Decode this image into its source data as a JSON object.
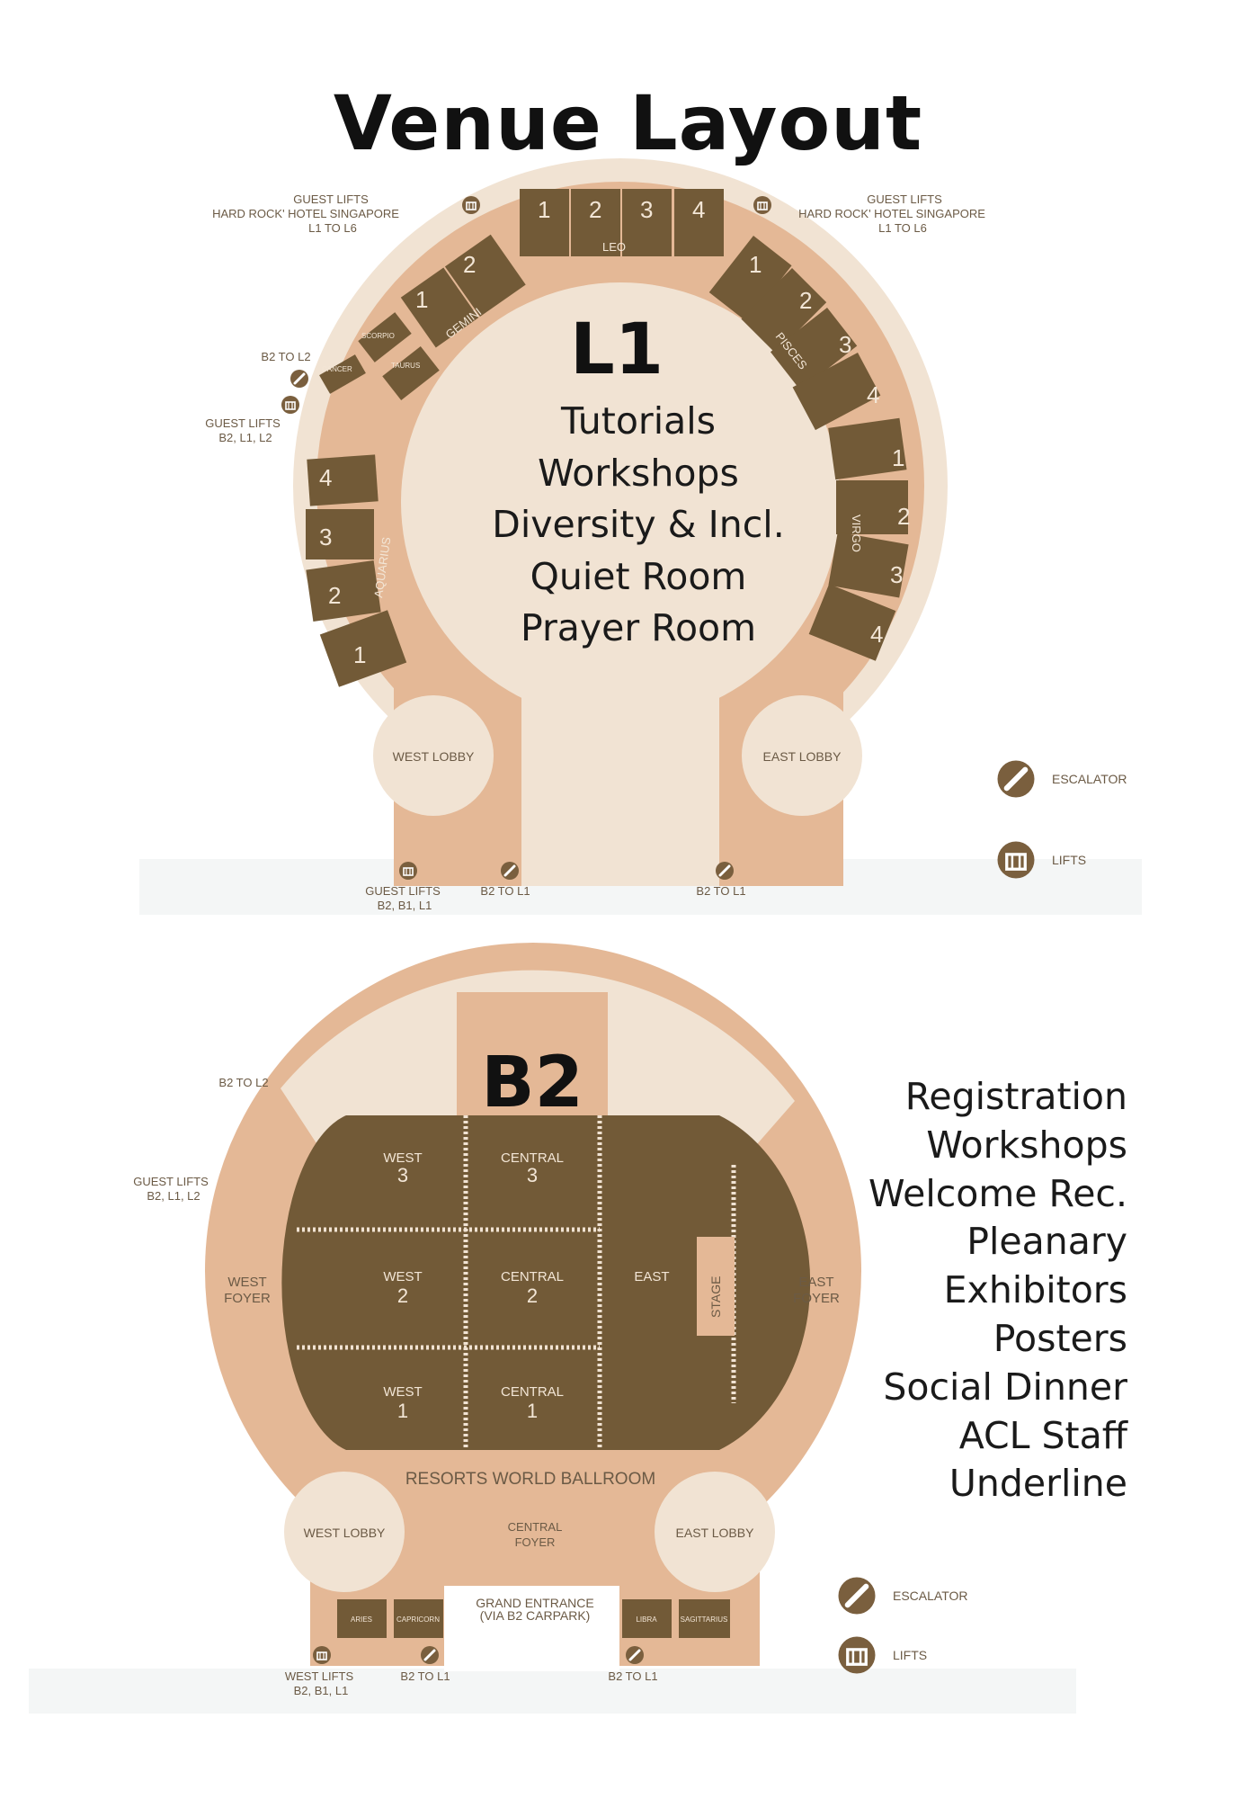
{
  "title": "Venue Layout",
  "l1": {
    "level": "L1",
    "uses": [
      "Tutorials",
      "Workshops",
      "Diversity & Incl.",
      "Quiet Room",
      "Prayer Room"
    ],
    "leo": {
      "name": "LEO",
      "rooms": [
        "1",
        "2",
        "3",
        "4"
      ]
    },
    "gemini": {
      "name": "GEMINI",
      "rooms": [
        "1",
        "2"
      ]
    },
    "pisces": {
      "name": "PISCES",
      "rooms": [
        "1",
        "2",
        "3",
        "4"
      ]
    },
    "virgo": {
      "name": "VIRGO",
      "rooms": [
        "1",
        "2",
        "3",
        "4"
      ]
    },
    "aquarius": {
      "name": "AQUARIUS",
      "rooms": [
        "1",
        "2",
        "3",
        "4"
      ]
    },
    "scorpio": "SCORPIO",
    "taurus": "TAURUS",
    "cancer": "CANCER",
    "west_lobby": "WEST LOBBY",
    "east_lobby": "EAST LOBBY",
    "guest_lifts_hr_left": [
      "GUEST LIFTS",
      "HARD ROCK' HOTEL SINGAPORE",
      "L1 TO L6"
    ],
    "guest_lifts_hr_right": [
      "GUEST LIFTS",
      "HARD ROCK' HOTEL SINGAPORE",
      "L1 TO L6"
    ],
    "b2_to_l2": "B2 TO L2",
    "guest_lifts_b2_l2": [
      "GUEST LIFTS",
      "B2, L1, L2"
    ],
    "guest_lifts_b2_l1": [
      "GUEST LIFTS",
      "B2, B1, L1"
    ],
    "b2_to_l1_left": "B2 TO L1",
    "b2_to_l1_right": "B2 TO L1",
    "legend_escalator": "ESCALATOR",
    "legend_lifts": "LIFTS"
  },
  "b2": {
    "level": "B2",
    "uses": [
      "Registration",
      "Workshops",
      "Welcome Rec.",
      "Pleanary",
      "Exhibitors",
      "Posters",
      "Social Dinner",
      "ACL Staff",
      "Underline"
    ],
    "west3": [
      "WEST",
      "3"
    ],
    "west2": [
      "WEST",
      "2"
    ],
    "west1": [
      "WEST",
      "1"
    ],
    "central3": [
      "CENTRAL",
      "3"
    ],
    "central2": [
      "CENTRAL",
      "2"
    ],
    "central1": [
      "CENTRAL",
      "1"
    ],
    "east": "EAST",
    "stage": "STAGE",
    "west_foyer": [
      "WEST",
      "FOYER"
    ],
    "east_foyer": [
      "EAST",
      "FOYER"
    ],
    "ballroom": "RESORTS WORLD BALLROOM",
    "central_foyer": [
      "CENTRAL",
      "FOYER"
    ],
    "west_lobby": "WEST LOBBY",
    "east_lobby": "EAST LOBBY",
    "grand_entrance": [
      "GRAND ENTRANCE",
      "(VIA B2 CARPARK)"
    ],
    "aries": "ARIES",
    "capricorn": "CAPRICORN",
    "libra": "LIBRA",
    "sagittarius": "SAGITTARIUS",
    "b2_to_l2": "B2 TO L2",
    "guest_lifts_b2_l2": [
      "GUEST LIFTS",
      "B2, L1, L2"
    ],
    "west_lifts": [
      "WEST LIFTS",
      "B2, B1, L1"
    ],
    "b2_to_l1_left": "B2 TO L1",
    "b2_to_l1_right": "B2 TO L1",
    "legend_escalator": "ESCALATOR",
    "legend_lifts": "LIFTS"
  },
  "colors": {
    "room": "#725a37",
    "corridor": "#e4b896",
    "floor": "#f1e3d3",
    "text": "#6b5a45"
  }
}
